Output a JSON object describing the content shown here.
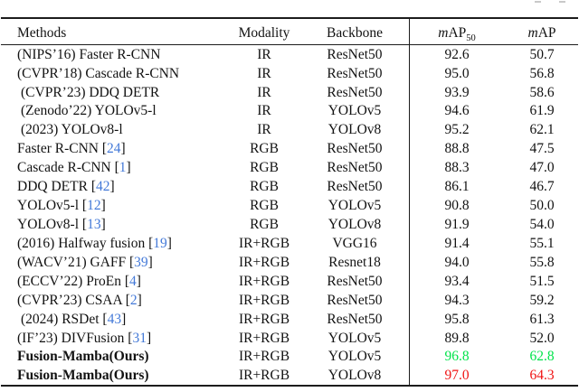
{
  "colors": {
    "text": "#121212",
    "rule": "#1c1c1c",
    "citation_blue": "#4379d8",
    "highlight_green": "#00e34a",
    "highlight_red": "#f01212",
    "artifact_gray": "#c9c9c9"
  },
  "table": {
    "header": {
      "methods": "Methods",
      "modality": "Modality",
      "backbone": "Backbone",
      "map50": {
        "italic": "m",
        "text": "AP",
        "sub": "50"
      },
      "map": {
        "italic": "m",
        "text": "AP"
      }
    },
    "rows": [
      {
        "method": "(NIPS’16) Faster R-CNN",
        "cite": null,
        "modality": "IR",
        "backbone": "ResNet50",
        "map50": "92.6",
        "map": "50.7",
        "bold": false,
        "indent": false,
        "value_color": "default"
      },
      {
        "method": "(CVPR’18) Cascade R-CNN",
        "cite": null,
        "modality": "IR",
        "backbone": "ResNet50",
        "map50": "95.0",
        "map": "56.8",
        "bold": false,
        "indent": false,
        "value_color": "default"
      },
      {
        "method": "(CVPR’23) DDQ DETR",
        "cite": null,
        "modality": "IR",
        "backbone": "ResNet50",
        "map50": "93.9",
        "map": "58.6",
        "bold": false,
        "indent": true,
        "value_color": "default"
      },
      {
        "method": "(Zenodo’22) YOLOv5-l",
        "cite": null,
        "modality": "IR",
        "backbone": "YOLOv5",
        "map50": "94.6",
        "map": "61.9",
        "bold": false,
        "indent": true,
        "value_color": "default"
      },
      {
        "method": "(2023) YOLOv8-l",
        "cite": null,
        "modality": "IR",
        "backbone": "YOLOv8",
        "map50": "95.2",
        "map": "62.1",
        "bold": false,
        "indent": true,
        "value_color": "default"
      },
      {
        "method": "Faster R-CNN",
        "cite": "24",
        "modality": "RGB",
        "backbone": "ResNet50",
        "map50": "88.8",
        "map": "47.5",
        "bold": false,
        "indent": false,
        "value_color": "default"
      },
      {
        "method": "Cascade R-CNN",
        "cite": "1",
        "modality": "RGB",
        "backbone": "ResNet50",
        "map50": "88.3",
        "map": "47.0",
        "bold": false,
        "indent": false,
        "value_color": "default"
      },
      {
        "method": "DDQ DETR",
        "cite": "42",
        "modality": "RGB",
        "backbone": "ResNet50",
        "map50": "86.1",
        "map": "46.7",
        "bold": false,
        "indent": false,
        "value_color": "default"
      },
      {
        "method": "YOLOv5-l",
        "cite": "12",
        "modality": "RGB",
        "backbone": "YOLOv5",
        "map50": "90.8",
        "map": "50.0",
        "bold": false,
        "indent": false,
        "value_color": "default"
      },
      {
        "method": "YOLOv8-l",
        "cite": "13",
        "modality": "RGB",
        "backbone": "YOLOv8",
        "map50": "91.9",
        "map": "54.0",
        "bold": false,
        "indent": false,
        "value_color": "default"
      },
      {
        "method": "(2016) Halfway fusion",
        "cite": "19",
        "modality": "IR+RGB",
        "backbone": "VGG16",
        "map50": "91.4",
        "map": "55.1",
        "bold": false,
        "indent": false,
        "value_color": "default"
      },
      {
        "method": "(WACV’21) GAFF",
        "cite": "39",
        "modality": "IR+RGB",
        "backbone": "Resnet18",
        "map50": "94.0",
        "map": "55.8",
        "bold": false,
        "indent": false,
        "value_color": "default"
      },
      {
        "method": "(ECCV’22) ProEn",
        "cite": "4",
        "modality": "IR+RGB",
        "backbone": "ResNet50",
        "map50": "93.4",
        "map": "51.5",
        "bold": false,
        "indent": false,
        "value_color": "default"
      },
      {
        "method": "(CVPR’23) CSAA",
        "cite": "2",
        "modality": "IR+RGB",
        "backbone": "ResNet50",
        "map50": "94.3",
        "map": "59.2",
        "bold": false,
        "indent": false,
        "value_color": "default"
      },
      {
        "method": "(2024) RSDet",
        "cite": "43",
        "modality": "IR+RGB",
        "backbone": "ResNet50",
        "map50": "95.8",
        "map": "61.3",
        "bold": false,
        "indent": true,
        "value_color": "default"
      },
      {
        "method": "(IF’23) DIVFusion",
        "cite": "31",
        "modality": "IR+RGB",
        "backbone": "YOLOv5",
        "map50": "89.8",
        "map": "52.0",
        "bold": false,
        "indent": false,
        "value_color": "default"
      },
      {
        "method": "Fusion-Mamba(Ours)",
        "cite": null,
        "modality": "IR+RGB",
        "backbone": "YOLOv5",
        "map50": "96.8",
        "map": "62.8",
        "bold": true,
        "indent": false,
        "value_color": "green"
      },
      {
        "method": "Fusion-Mamba(Ours)",
        "cite": null,
        "modality": "IR+RGB",
        "backbone": "YOLOv8",
        "map50": "97.0",
        "map": "64.3",
        "bold": true,
        "indent": false,
        "value_color": "red"
      }
    ]
  }
}
